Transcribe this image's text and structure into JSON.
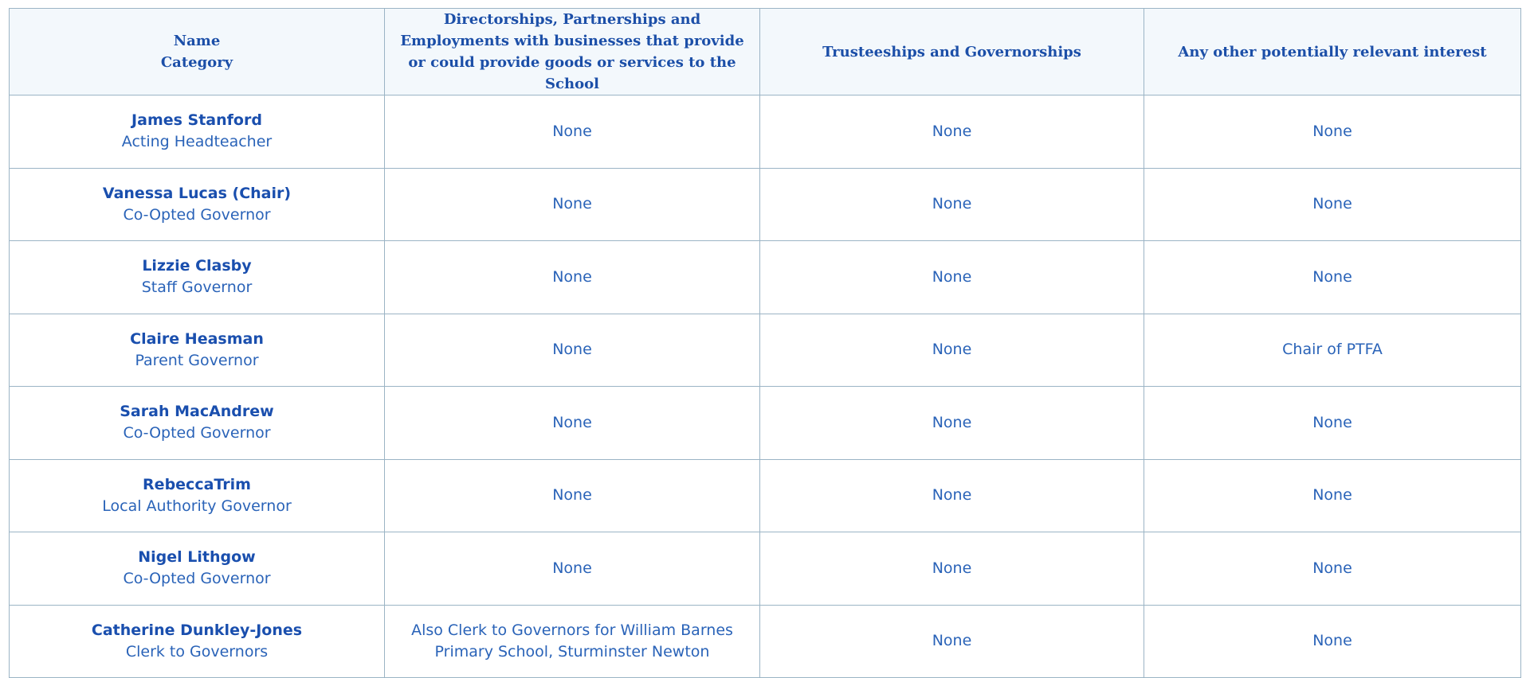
{
  "table": {
    "headers": {
      "name_line": "Name",
      "category_line": "Category",
      "directorships": "Directorships, Partnerships and Employments with businesses that provide or could provide goods or services to the School",
      "trusteeships": "Trusteeships and Governorships",
      "other_interest": "Any other potentially relevant interest"
    },
    "rows": [
      {
        "name": "James Stanford",
        "category": "Acting Headteacher",
        "directorships": "None",
        "trusteeships": "None",
        "other": "None"
      },
      {
        "name": "Vanessa Lucas (Chair)",
        "category": "Co-Opted Governor",
        "directorships": "None",
        "trusteeships": "None",
        "other": "None"
      },
      {
        "name": "Lizzie Clasby",
        "category": "Staff Governor",
        "directorships": "None",
        "trusteeships": "None",
        "other": "None"
      },
      {
        "name": "Claire Heasman",
        "category": "Parent Governor",
        "directorships": "None",
        "trusteeships": "None",
        "other": "Chair of PTFA"
      },
      {
        "name": "Sarah MacAndrew",
        "category": "Co-Opted Governor",
        "directorships": "None",
        "trusteeships": "None",
        "other": "None"
      },
      {
        "name": "RebeccaTrim",
        "category": "Local Authority Governor",
        "directorships": "None",
        "trusteeships": "None",
        "other": "None"
      },
      {
        "name": "Nigel Lithgow",
        "category": "Co-Opted Governor",
        "directorships": "None",
        "trusteeships": "None",
        "other": "None"
      },
      {
        "name": "Catherine Dunkley-Jones",
        "category": "Clerk to Governors",
        "directorships": "Also Clerk to Governors for William Barnes Primary School, Sturminster Newton",
        "trusteeships": "None",
        "other": "None"
      }
    ]
  },
  "colors": {
    "text": "#2a63b8",
    "header_text": "#1c4fa8",
    "header_bg": "#f3f8fc",
    "border": "#9bb4c5"
  }
}
